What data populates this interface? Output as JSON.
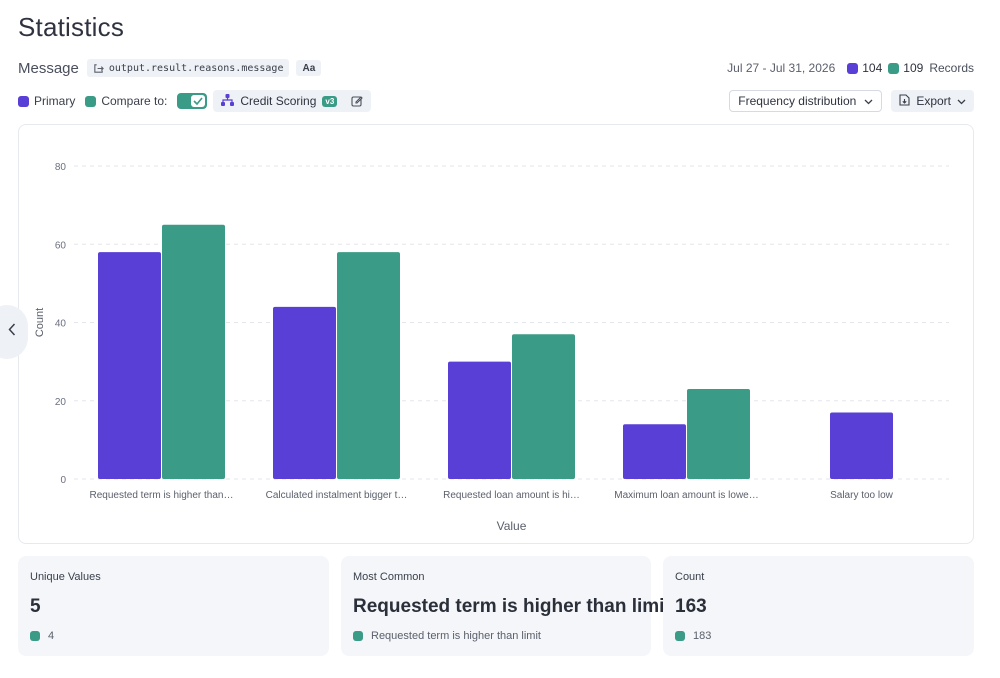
{
  "page": {
    "title": "Statistics"
  },
  "field": {
    "label": "Message",
    "path": "output.result.reasons.message",
    "type_badge": "Aa"
  },
  "meta": {
    "date_range": "Jul 27 - Jul 31, 2026",
    "primary_count": "104",
    "compare_count": "109",
    "records_label": "Records"
  },
  "compare": {
    "primary_label": "Primary",
    "compare_label": "Compare to:",
    "toggle_on": true,
    "model_name": "Credit Scoring",
    "model_version": "v3"
  },
  "controls": {
    "view_select": "Frequency distribution",
    "export_label": "Export"
  },
  "colors": {
    "primary": "#5a3fd6",
    "compare": "#3a9b86"
  },
  "icons": {
    "path": "path-link-icon",
    "model": "model-tree-icon",
    "edit": "edit-icon",
    "chevron": "chevron-down-icon",
    "export": "file-export-icon",
    "back": "chevron-left-icon",
    "check": "check-icon"
  },
  "chart_data": {
    "type": "bar",
    "categories": [
      "Requested term is higher than…",
      "Calculated instalment bigger t…",
      "Requested loan amount is hi…",
      "Maximum loan amount is lowe…",
      "Salary too low"
    ],
    "series": [
      {
        "values": [
          58,
          44,
          30,
          14,
          17
        ]
      },
      {
        "values": [
          65,
          58,
          37,
          23,
          0
        ]
      }
    ],
    "xlabel": "Value",
    "ylabel": "Count",
    "ylim": [
      0,
      80
    ],
    "yticks": [
      0,
      20,
      40,
      60,
      80
    ],
    "grid": true
  },
  "stats": {
    "unique": {
      "label": "Unique Values",
      "value": "5",
      "compare": "4"
    },
    "common": {
      "label": "Most Common",
      "value": "Requested term is higher than limit",
      "compare": "Requested term is higher than limit"
    },
    "count": {
      "label": "Count",
      "value": "163",
      "compare": "183"
    }
  }
}
